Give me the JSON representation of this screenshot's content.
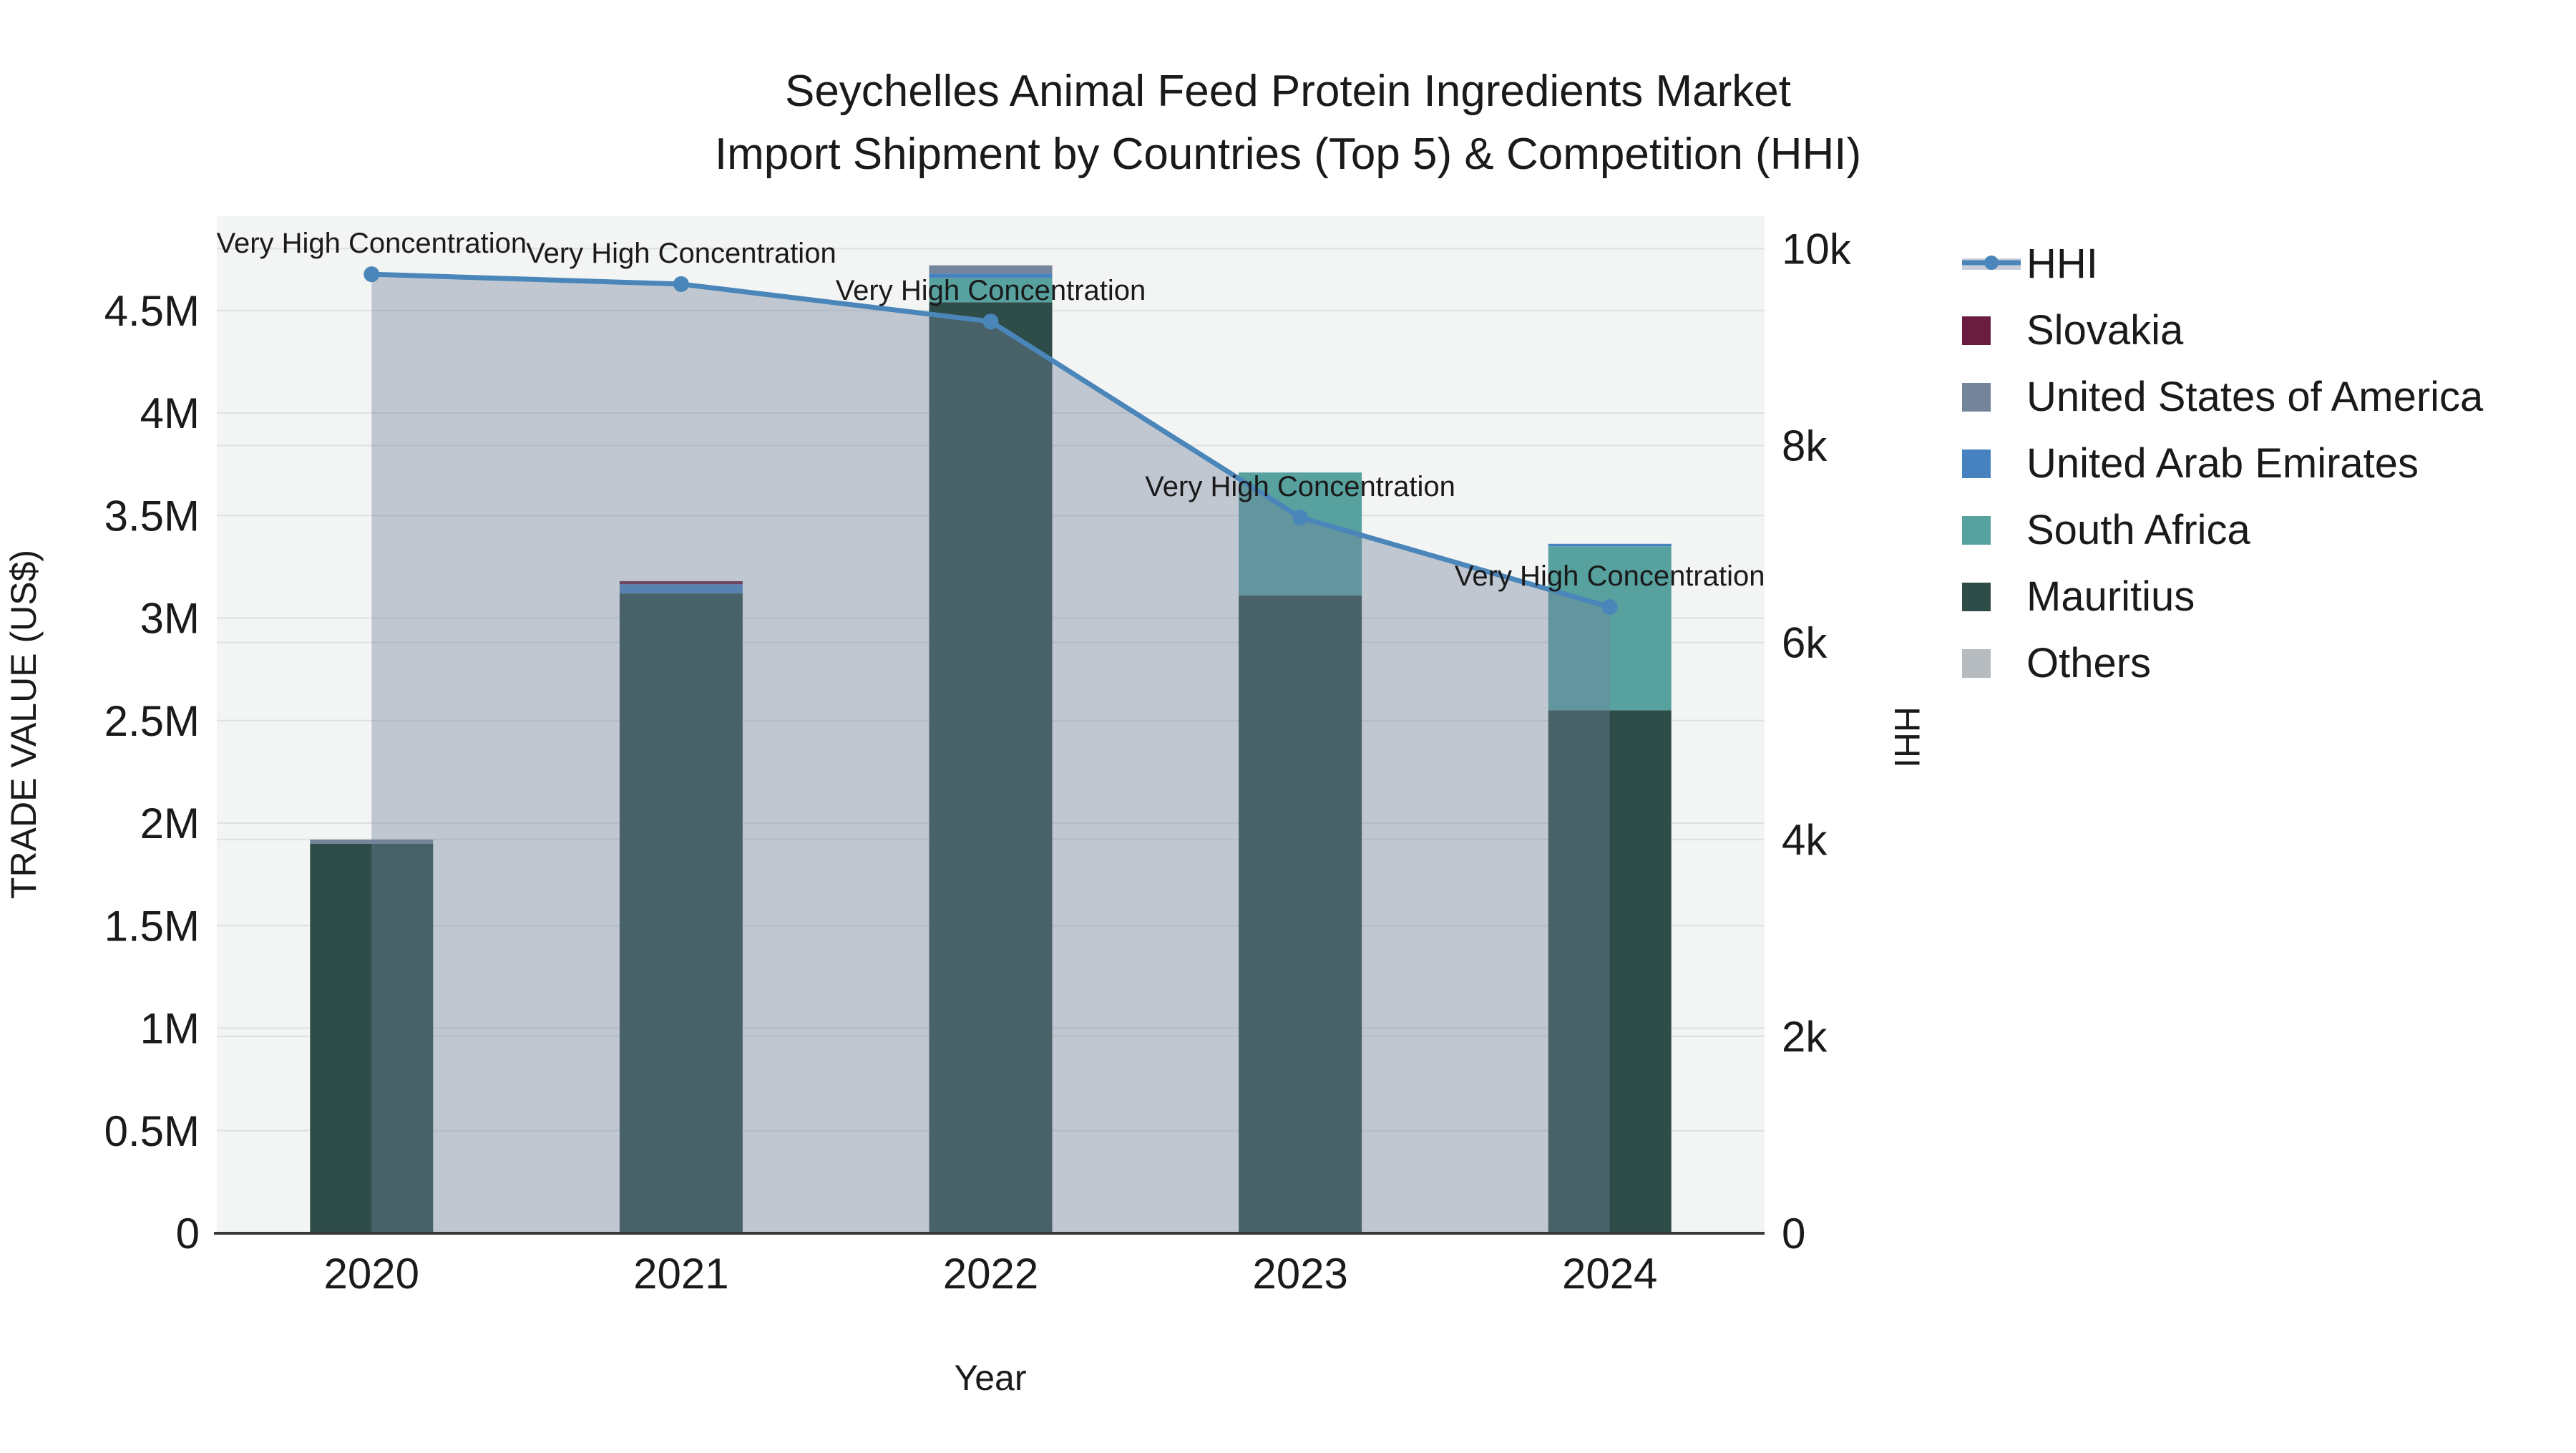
{
  "title": {
    "line1": "Seychelles Animal Feed Protein Ingredients Market",
    "line2": "Import Shipment by Countries (Top 5) & Competition (HHI)"
  },
  "chart_data": {
    "type": "bar+line",
    "subtype": "stacked-bars-with-secondary-axis-line-area",
    "categories": [
      "2020",
      "2021",
      "2022",
      "2023",
      "2024"
    ],
    "x_axis": {
      "title": "Year"
    },
    "left_axis": {
      "title": "TRADE VALUE (US$)",
      "tick_labels": [
        "0",
        "0.5M",
        "1M",
        "1.5M",
        "2M",
        "2.5M",
        "3M",
        "3.5M",
        "4M",
        "4.5M"
      ],
      "tick_values": [
        0,
        500000,
        1000000,
        1500000,
        2000000,
        2500000,
        3000000,
        3500000,
        4000000,
        4500000
      ],
      "min": 0,
      "max": 4960000
    },
    "right_axis": {
      "title": "HHI",
      "tick_labels": [
        "0",
        "2k",
        "4k",
        "6k",
        "8k",
        "10k"
      ],
      "tick_values": [
        0,
        2000,
        4000,
        6000,
        8000,
        10000
      ],
      "min": 0,
      "max": 10330
    },
    "bar_series": [
      {
        "name": "Others",
        "color": "#b6bbbf",
        "values": [
          0,
          0,
          0,
          0,
          0
        ]
      },
      {
        "name": "Mauritius",
        "color": "#2e4c48",
        "values": [
          1900000,
          3120000,
          4540000,
          3110000,
          2550000
        ]
      },
      {
        "name": "South Africa",
        "color": "#57a19e",
        "values": [
          0,
          0,
          120000,
          600000,
          800000
        ]
      },
      {
        "name": "United Arab Emirates",
        "color": "#4682c0",
        "values": [
          0,
          45000,
          20000,
          0,
          12000
        ]
      },
      {
        "name": "United States of America",
        "color": "#74849a",
        "values": [
          20000,
          0,
          40000,
          0,
          0
        ]
      },
      {
        "name": "Slovakia",
        "color": "#6b1d3f",
        "values": [
          0,
          15000,
          0,
          0,
          0
        ]
      }
    ],
    "line_series": {
      "name": "HHI",
      "color": "#4a86ba",
      "area_fill": "rgba(116,132,154,0.40)",
      "marker_radius": 11,
      "values": [
        9740,
        9640,
        9260,
        7270,
        6360
      ]
    },
    "annotations": [
      {
        "category": "2020",
        "text": "Very High Concentration"
      },
      {
        "category": "2021",
        "text": "Very High Concentration"
      },
      {
        "category": "2022",
        "text": "Very High Concentration"
      },
      {
        "category": "2023",
        "text": "Very High Concentration"
      },
      {
        "category": "2024",
        "text": "Very High Concentration"
      }
    ],
    "grid": true,
    "legend_position": "right"
  },
  "legend": {
    "items": [
      {
        "label": "HHI",
        "type": "line",
        "color": "#4a86ba",
        "band": "#c9cfd9"
      },
      {
        "label": "Slovakia",
        "type": "swatch",
        "color": "#6b1d3f"
      },
      {
        "label": "United States of America",
        "type": "swatch",
        "color": "#74849a"
      },
      {
        "label": "United Arab Emirates",
        "type": "swatch",
        "color": "#4682c0"
      },
      {
        "label": "South Africa",
        "type": "swatch",
        "color": "#57a19e"
      },
      {
        "label": "Mauritius",
        "type": "swatch",
        "color": "#2e4c48"
      },
      {
        "label": "Others",
        "type": "swatch",
        "color": "#b6bbbf"
      }
    ]
  },
  "colors": {
    "plot_background": "#f3f4f4",
    "paper_background": "#ffffff",
    "gridline": "rgba(70,80,90,0.12)",
    "axis_line": "#3a3a3a",
    "text": "#1a1a1a",
    "hhi_line": "#4a86ba",
    "hhi_area": "rgba(116,132,154,0.40)"
  }
}
